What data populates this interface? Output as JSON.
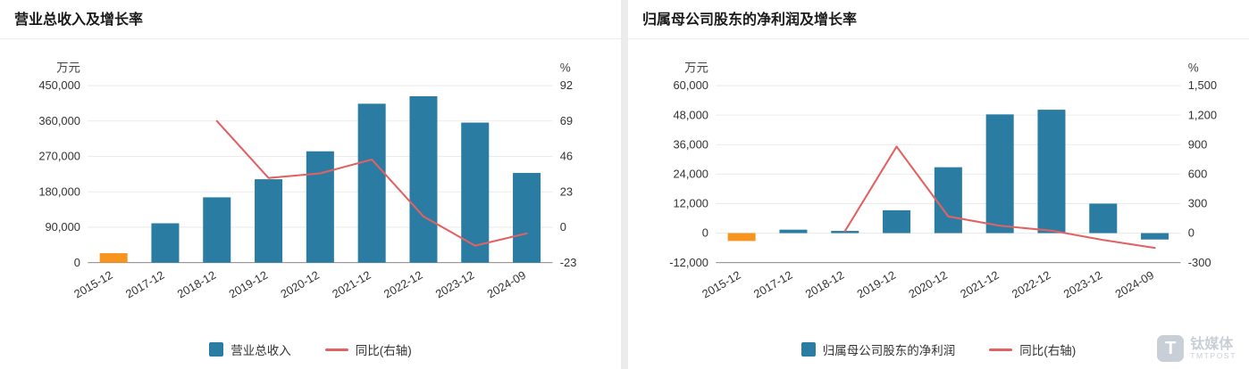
{
  "colors": {
    "bar": "#2b7ca3",
    "bar_highlight": "#f7941e",
    "line": "#e26262",
    "grid": "#ebebeb",
    "axis": "#8c8c8c",
    "tick_text": "#333333",
    "title_text": "#1a1a1a",
    "watermark": "#c9cfd6"
  },
  "watermark": {
    "logo_letter": "T",
    "cn": "钛媒体",
    "en": "TMTPOST"
  },
  "chart_data": [
    {
      "type": "bar-line",
      "title": "营业总收入及增长率",
      "legend": {
        "bar": "营业总收入",
        "line": "同比(右轴)"
      },
      "legend_position": "bottom",
      "grid": true,
      "x_tick_rotation": -30,
      "categories": [
        "2015-12",
        "2017-12",
        "2018-12",
        "2019-12",
        "2020-12",
        "2021-12",
        "2022-12",
        "2023-12",
        "2024-09"
      ],
      "axis_left": {
        "unit": "万元",
        "min": 0,
        "max": 450000,
        "tick_values": [
          0,
          90000,
          180000,
          270000,
          360000,
          450000
        ],
        "tick_labels": [
          "0",
          "90,000",
          "180,000",
          "270,000",
          "360,000",
          "450,000"
        ]
      },
      "axis_right": {
        "unit": "%",
        "min": -23,
        "max": 92,
        "tick_values": [
          -23,
          0,
          23,
          46,
          69,
          92
        ],
        "tick_labels": [
          "-23",
          "0",
          "23",
          "46",
          "69",
          "92"
        ]
      },
      "series_bar": {
        "name": "营业总收入",
        "unit": "万元",
        "values": [
          24000,
          100000,
          166000,
          212000,
          283000,
          404000,
          423000,
          356000,
          228000
        ]
      },
      "highlight_indexes": [
        0
      ],
      "series_line": {
        "name": "同比(右轴)",
        "unit": "%",
        "values": [
          null,
          null,
          69,
          32,
          35,
          44,
          7,
          -12,
          -4
        ]
      }
    },
    {
      "type": "bar-line",
      "title": "归属母公司股东的净利润及增长率",
      "legend": {
        "bar": "归属母公司股东的净利润",
        "line": "同比(右轴)"
      },
      "legend_position": "bottom",
      "grid": true,
      "x_tick_rotation": -30,
      "categories": [
        "2015-12",
        "2017-12",
        "2018-12",
        "2019-12",
        "2020-12",
        "2021-12",
        "2022-12",
        "2023-12",
        "2024-09"
      ],
      "axis_left": {
        "unit": "万元",
        "min": -12000,
        "max": 60000,
        "tick_values": [
          -12000,
          0,
          12000,
          24000,
          36000,
          48000,
          60000
        ],
        "tick_labels": [
          "-12,000",
          "0",
          "12,000",
          "24,000",
          "36,000",
          "48,000",
          "60,000"
        ]
      },
      "axis_right": {
        "unit": "%",
        "min": -300,
        "max": 1500,
        "tick_values": [
          -300,
          0,
          300,
          600,
          900,
          1200,
          1500
        ],
        "tick_labels": [
          "-300",
          "0",
          "300",
          "600",
          "900",
          "1,200",
          "1,500"
        ]
      },
      "series_bar": {
        "name": "归属母公司股东的净利润",
        "unit": "万元",
        "values": [
          -3200,
          1400,
          900,
          9300,
          26800,
          48300,
          50200,
          12000,
          -2600
        ]
      },
      "highlight_indexes": [
        0
      ],
      "series_line": {
        "name": "同比(右轴)",
        "unit": "%",
        "values": [
          null,
          null,
          20,
          880,
          170,
          75,
          25,
          -70,
          -150
        ]
      }
    }
  ]
}
